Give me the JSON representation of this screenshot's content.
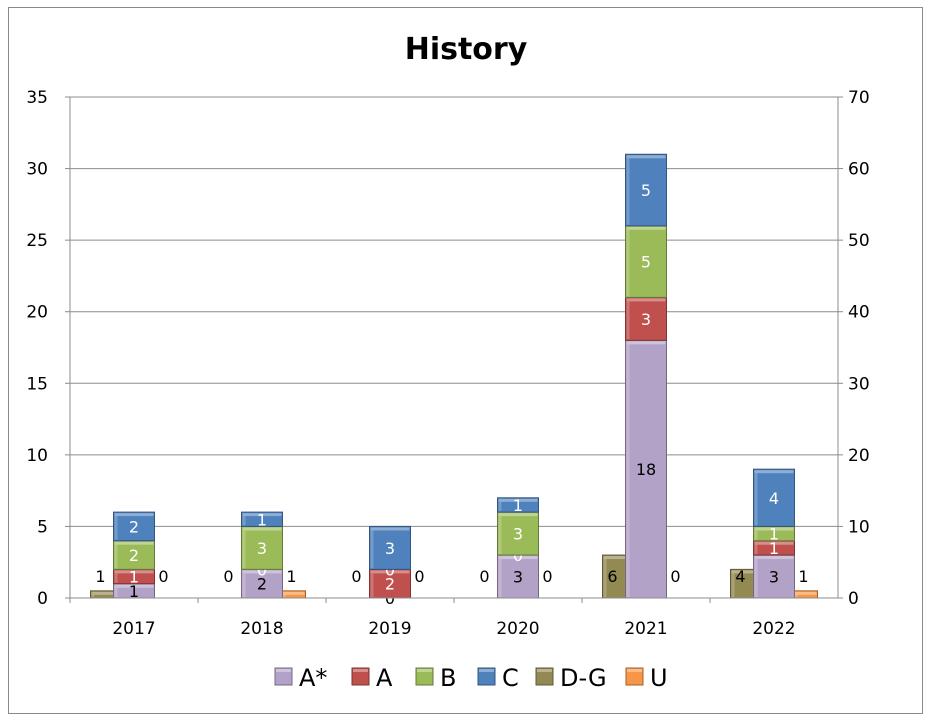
{
  "chart_data": {
    "type": "bar",
    "title": "History",
    "categories": [
      "2017",
      "2018",
      "2019",
      "2020",
      "2021",
      "2022"
    ],
    "stacked_series": [
      {
        "name": "A*",
        "color": "#b3a2c7",
        "values": [
          1,
          2,
          0,
          3,
          18,
          3
        ]
      },
      {
        "name": "A",
        "color": "#c0504d",
        "values": [
          1,
          0,
          2,
          0,
          3,
          1
        ]
      },
      {
        "name": "B",
        "color": "#9bbb59",
        "values": [
          2,
          3,
          0,
          3,
          5,
          1
        ]
      },
      {
        "name": "C",
        "color": "#4f81bd",
        "values": [
          2,
          1,
          3,
          1,
          5,
          4
        ]
      }
    ],
    "side_series": [
      {
        "name": "D-G",
        "color": "#938953",
        "values": [
          1,
          0,
          0,
          0,
          6,
          4
        ],
        "label_side": "left"
      },
      {
        "name": "U",
        "color": "#f79646",
        "values": [
          0,
          1,
          0,
          0,
          0,
          1
        ],
        "label_side": "right"
      }
    ],
    "ylim": [
      0,
      35
    ],
    "yticks": [
      "0",
      "5",
      "10",
      "15",
      "20",
      "25",
      "30",
      "35"
    ],
    "y2lim": [
      0,
      70
    ],
    "y2ticks": [
      "0",
      "10",
      "20",
      "30",
      "40",
      "50",
      "60",
      "70"
    ],
    "grid": true,
    "legend_position": "bottom",
    "legend": [
      "A*",
      "A",
      "B",
      "C",
      "D-G",
      "U"
    ]
  }
}
